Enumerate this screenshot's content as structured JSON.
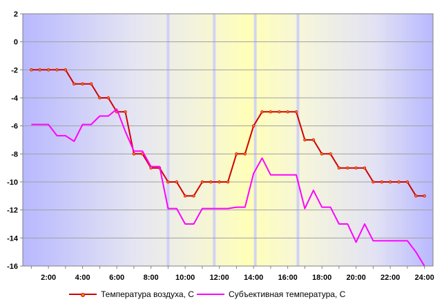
{
  "chart_data": {
    "type": "line",
    "title": "",
    "xlabel": "",
    "ylabel": "",
    "ylim": [
      -16,
      2
    ],
    "y_ticks": [
      "2",
      "0",
      "-2",
      "-4",
      "-6",
      "-8",
      "-10",
      "-12",
      "-14",
      "-16"
    ],
    "x_ticks": [
      "2:00",
      "4:00",
      "6:00",
      "8:00",
      "10:00",
      "12:00",
      "14:00",
      "16:00",
      "18:00",
      "20:00",
      "22:00",
      "24:00"
    ],
    "x_range_hours": [
      1,
      24
    ],
    "grid": "horizontal",
    "legend_position": "bottom",
    "background": "gradient blue-white-yellow, vertical light bands near 9:00, 11:30, 14:00, 16:30",
    "series": [
      {
        "name": "Температура воздуха, С",
        "color": "#d00000",
        "marker": "#ff8000",
        "points": [
          [
            1,
            -2
          ],
          [
            1.5,
            -2
          ],
          [
            2,
            -2
          ],
          [
            2.5,
            -2
          ],
          [
            3,
            -2
          ],
          [
            3.5,
            -3
          ],
          [
            4,
            -3
          ],
          [
            4.5,
            -3
          ],
          [
            5,
            -4
          ],
          [
            5.5,
            -4
          ],
          [
            6,
            -5
          ],
          [
            6.5,
            -5
          ],
          [
            7,
            -8
          ],
          [
            7.5,
            -8
          ],
          [
            8,
            -9
          ],
          [
            8.5,
            -9
          ],
          [
            9,
            -10
          ],
          [
            9.5,
            -10
          ],
          [
            10,
            -11
          ],
          [
            10.5,
            -11
          ],
          [
            11,
            -10
          ],
          [
            11.5,
            -10
          ],
          [
            12,
            -10
          ],
          [
            12.5,
            -10
          ],
          [
            13,
            -8
          ],
          [
            13.5,
            -8
          ],
          [
            14,
            -6
          ],
          [
            14.5,
            -5
          ],
          [
            15,
            -5
          ],
          [
            15.5,
            -5
          ],
          [
            16,
            -5
          ],
          [
            16.5,
            -5
          ],
          [
            17,
            -7
          ],
          [
            17.5,
            -7
          ],
          [
            18,
            -8
          ],
          [
            18.5,
            -8
          ],
          [
            19,
            -9
          ],
          [
            19.5,
            -9
          ],
          [
            20,
            -9
          ],
          [
            20.5,
            -9
          ],
          [
            21,
            -10
          ],
          [
            21.5,
            -10
          ],
          [
            22,
            -10
          ],
          [
            22.5,
            -10
          ],
          [
            23,
            -10
          ],
          [
            23.5,
            -11
          ],
          [
            24,
            -11
          ]
        ]
      },
      {
        "name": "Субъективная температура, С",
        "color": "#ff00ff",
        "points": [
          [
            1,
            -5.9
          ],
          [
            1.5,
            -5.9
          ],
          [
            2,
            -5.9
          ],
          [
            2.5,
            -6.7
          ],
          [
            3,
            -6.7
          ],
          [
            3.5,
            -7.1
          ],
          [
            4,
            -5.9
          ],
          [
            4.5,
            -5.9
          ],
          [
            5,
            -5.3
          ],
          [
            5.5,
            -5.3
          ],
          [
            6,
            -4.8
          ],
          [
            6.5,
            -6.4
          ],
          [
            7,
            -7.8
          ],
          [
            7.5,
            -7.8
          ],
          [
            8,
            -8.9
          ],
          [
            8.5,
            -8.9
          ],
          [
            9,
            -11.9
          ],
          [
            9.5,
            -11.9
          ],
          [
            10,
            -13
          ],
          [
            10.5,
            -13
          ],
          [
            11,
            -11.9
          ],
          [
            11.5,
            -11.9
          ],
          [
            12,
            -11.9
          ],
          [
            12.5,
            -11.9
          ],
          [
            13,
            -11.8
          ],
          [
            13.5,
            -11.8
          ],
          [
            14,
            -9.4
          ],
          [
            14.5,
            -8.3
          ],
          [
            15,
            -9.5
          ],
          [
            15.5,
            -9.5
          ],
          [
            16,
            -9.5
          ],
          [
            16.5,
            -9.5
          ],
          [
            17,
            -11.9
          ],
          [
            17.5,
            -10.6
          ],
          [
            18,
            -11.8
          ],
          [
            18.5,
            -11.8
          ],
          [
            19,
            -13
          ],
          [
            19.5,
            -13
          ],
          [
            20,
            -14.3
          ],
          [
            20.5,
            -13
          ],
          [
            21,
            -14.2
          ],
          [
            21.5,
            -14.2
          ],
          [
            22,
            -14.2
          ],
          [
            22.5,
            -14.2
          ],
          [
            23,
            -14.2
          ],
          [
            23.5,
            -15
          ],
          [
            24,
            -16
          ]
        ]
      }
    ]
  }
}
